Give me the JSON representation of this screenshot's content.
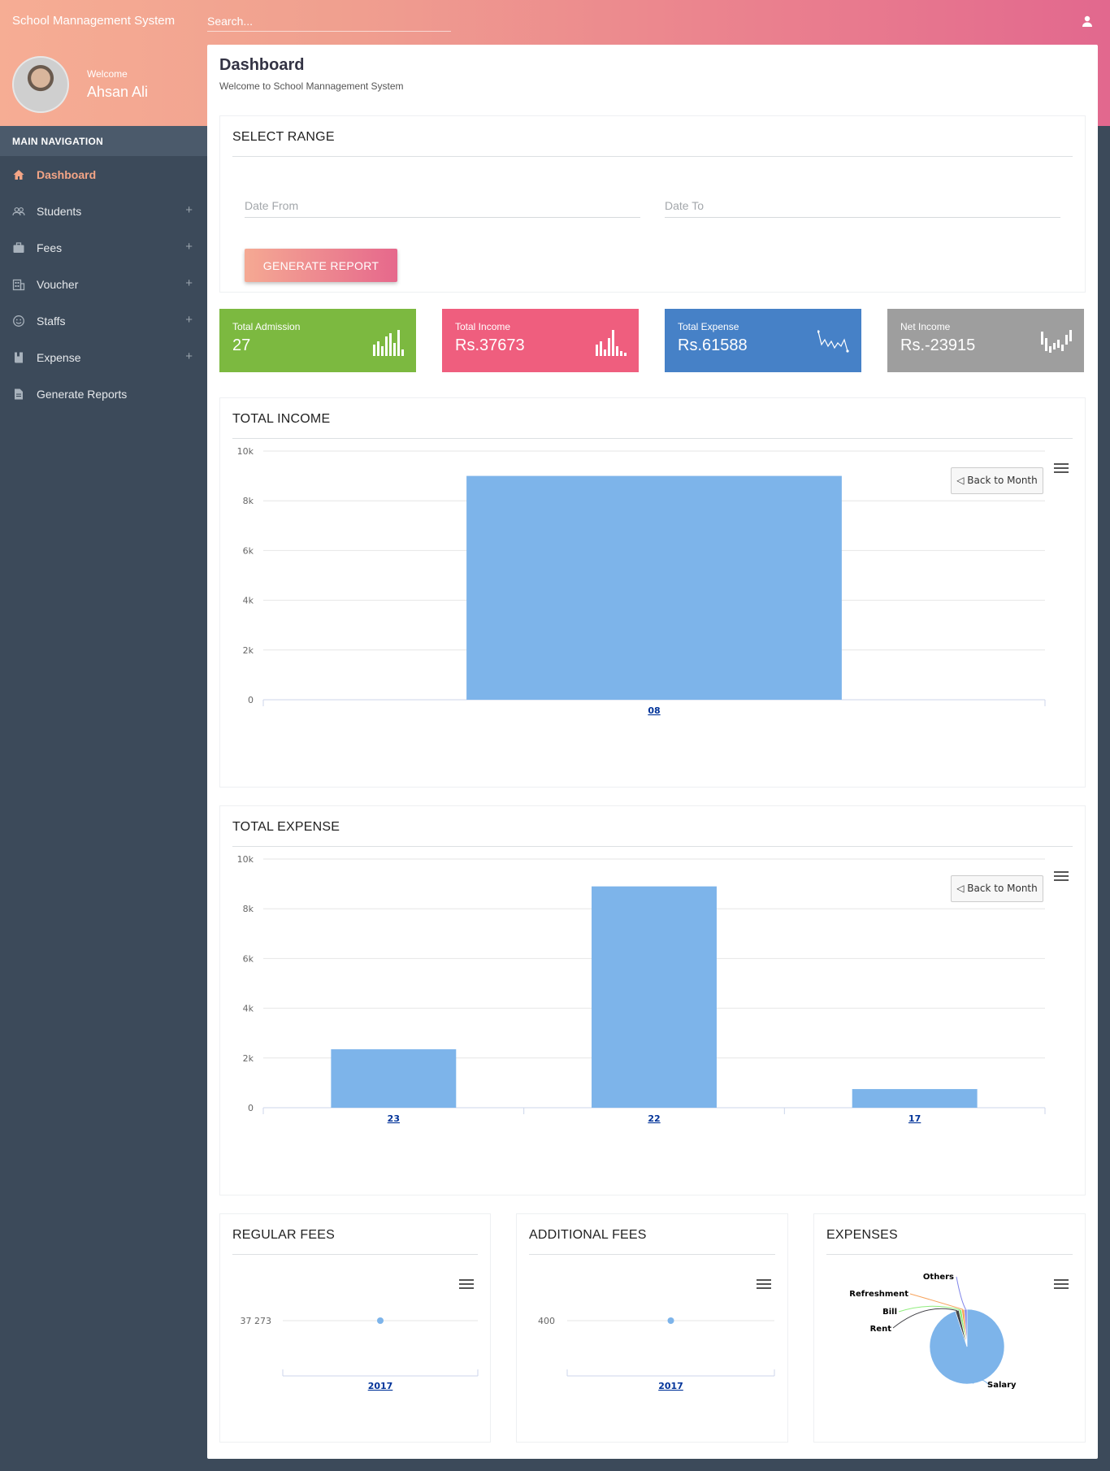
{
  "app": {
    "brand": "School Mannagement System"
  },
  "search": {
    "placeholder": "Search..."
  },
  "user": {
    "welcome": "Welcome",
    "name": "Ahsan Ali"
  },
  "nav": {
    "header": "MAIN NAVIGATION",
    "items": [
      {
        "label": "Dashboard",
        "icon": "home-icon",
        "expandable": false,
        "active": true
      },
      {
        "label": "Students",
        "icon": "users-icon",
        "expandable": true
      },
      {
        "label": "Fees",
        "icon": "briefcase-icon",
        "expandable": true
      },
      {
        "label": "Voucher",
        "icon": "building-icon",
        "expandable": true
      },
      {
        "label": "Staffs",
        "icon": "smile-icon",
        "expandable": true
      },
      {
        "label": "Expense",
        "icon": "book-icon",
        "expandable": true
      },
      {
        "label": "Generate Reports",
        "icon": "document-icon",
        "expandable": false
      }
    ],
    "plus": "+"
  },
  "page": {
    "title": "Dashboard",
    "subtitle": "Welcome to School Mannagement System"
  },
  "range": {
    "title": "SELECT RANGE",
    "date_from_placeholder": "Date From",
    "date_to_placeholder": "Date To",
    "generate_label": "GENERATE REPORT"
  },
  "stats": [
    {
      "label": "Total Admission",
      "value": "27",
      "color": "#7cb940"
    },
    {
      "label": "Total Income",
      "value": "Rs.37673",
      "color": "#ef5e7e"
    },
    {
      "label": "Total Expense",
      "value": "Rs.61588",
      "color": "#4681c7"
    },
    {
      "label": "Net Income",
      "value": "Rs.-23915",
      "color": "#9e9e9e"
    }
  ],
  "back_label": "◁ Back to Month",
  "chart_data": [
    {
      "id": "income",
      "title": "TOTAL INCOME",
      "type": "bar",
      "categories": [
        "08"
      ],
      "values": [
        9000
      ],
      "ylim": [
        0,
        10000
      ],
      "yticks": [
        "0",
        "2k",
        "4k",
        "6k",
        "8k",
        "10k"
      ],
      "bar_color": "#7db4ea"
    },
    {
      "id": "expense",
      "title": "TOTAL EXPENSE",
      "type": "bar",
      "categories": [
        "23",
        "22",
        "17"
      ],
      "values": [
        2350,
        8900,
        750
      ],
      "ylim": [
        0,
        10000
      ],
      "yticks": [
        "0",
        "2k",
        "4k",
        "6k",
        "8k",
        "10k"
      ],
      "bar_color": "#7db4ea"
    },
    {
      "id": "regular",
      "title": "REGULAR FEES",
      "type": "line",
      "categories": [
        "2017"
      ],
      "values": [
        37273
      ],
      "ytick": "37 273"
    },
    {
      "id": "additional",
      "title": "ADDITIONAL FEES",
      "type": "line",
      "categories": [
        "2017"
      ],
      "values": [
        400
      ],
      "ytick": "400"
    },
    {
      "id": "expenses-pie",
      "title": "EXPENSES",
      "type": "pie",
      "slices": [
        {
          "name": "Salary",
          "value": 95.0,
          "color": "#7db4ea"
        },
        {
          "name": "Rent",
          "value": 1.5,
          "color": "#434348"
        },
        {
          "name": "Bill",
          "value": 1.2,
          "color": "#90ed7d"
        },
        {
          "name": "Refreshment",
          "value": 1.2,
          "color": "#f7a35c"
        },
        {
          "name": "Others",
          "value": 1.1,
          "color": "#8085e9"
        }
      ]
    }
  ]
}
